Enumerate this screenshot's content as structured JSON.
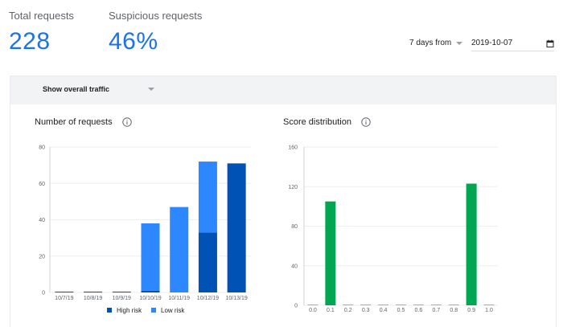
{
  "stats": {
    "total_label": "Total requests",
    "total_value": "228",
    "suspicious_label": "Suspicious requests",
    "suspicious_value": "46%"
  },
  "controls": {
    "range_label": "7 days from",
    "date_value": "2019-10-07",
    "traffic_filter": "Show overall traffic",
    "date_icon": "calendar-icon",
    "info_icon": "info-icon"
  },
  "colors": {
    "accent": "#1a73e8",
    "high_risk": "#0052b4",
    "low_risk": "#2d87ff",
    "score": "#00a651",
    "score_zero": "#5fd3a0"
  },
  "chart_data": [
    {
      "type": "bar",
      "stacked": true,
      "title": "Number of requests",
      "categories": [
        "10/7/19",
        "10/8/19",
        "10/9/19",
        "10/10/19",
        "10/11/19",
        "10/12/19",
        "10/13/19"
      ],
      "series": [
        {
          "name": "High risk",
          "values": [
            0,
            0,
            0,
            1,
            0,
            33,
            71
          ]
        },
        {
          "name": "Low risk",
          "values": [
            0,
            0,
            0,
            37,
            47,
            39,
            0
          ]
        }
      ],
      "ylim": [
        0,
        80
      ],
      "yticks": [
        0,
        20,
        40,
        60,
        80
      ],
      "grid": true,
      "legend": "bottom"
    },
    {
      "type": "bar",
      "title": "Score distribution",
      "categories": [
        "0.0",
        "0.1",
        "0.2",
        "0.3",
        "0.4",
        "0.5",
        "0.6",
        "0.7",
        "0.8",
        "0.9",
        "1.0"
      ],
      "values": [
        0,
        105,
        0,
        0,
        0,
        0,
        0,
        0,
        0,
        123,
        0
      ],
      "ylim": [
        0,
        160
      ],
      "yticks": [
        0,
        40,
        80,
        120,
        160
      ],
      "grid": true
    }
  ]
}
